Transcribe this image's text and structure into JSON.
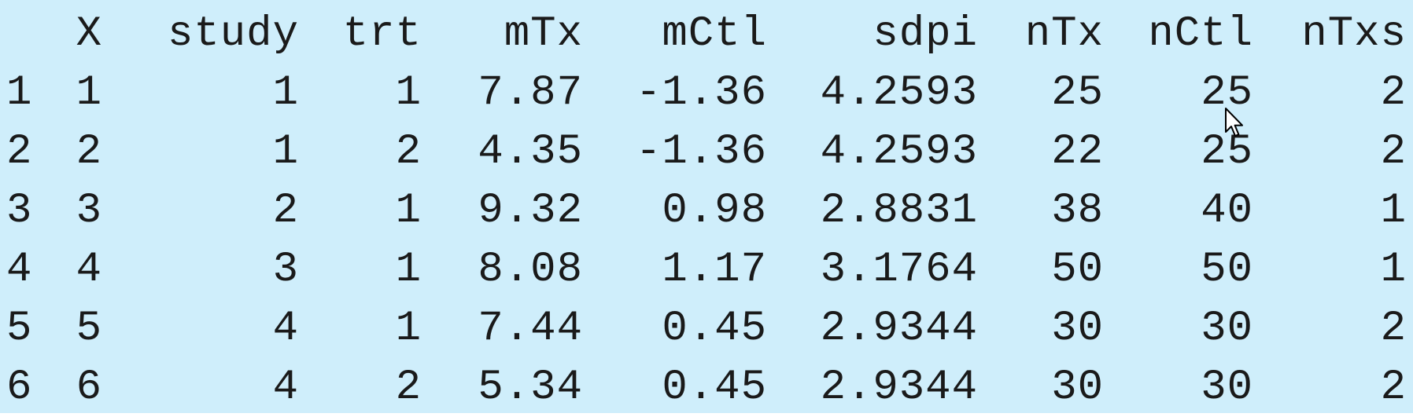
{
  "table": {
    "columns": [
      "",
      "X",
      "study",
      "trt",
      "mTx",
      "mCtl",
      "sdpi",
      "nTx",
      "nCtl",
      "nTxs"
    ],
    "rows": [
      [
        "1",
        "1",
        "1",
        "1",
        "7.87",
        "-1.36",
        "4.2593",
        "25",
        "25",
        "2"
      ],
      [
        "2",
        "2",
        "1",
        "2",
        "4.35",
        "-1.36",
        "4.2593",
        "22",
        "25",
        "2"
      ],
      [
        "3",
        "3",
        "2",
        "1",
        "9.32",
        "0.98",
        "2.8831",
        "38",
        "40",
        "1"
      ],
      [
        "4",
        "4",
        "3",
        "1",
        "8.08",
        "1.17",
        "3.1764",
        "50",
        "50",
        "1"
      ],
      [
        "5",
        "5",
        "4",
        "1",
        "7.44",
        "0.45",
        "2.9344",
        "30",
        "30",
        "2"
      ],
      [
        "6",
        "6",
        "4",
        "2",
        "5.34",
        "0.45",
        "2.9344",
        "30",
        "30",
        "2"
      ]
    ]
  },
  "colors": {
    "background": "#cfeefb",
    "text": "#1a1a1a"
  },
  "icons": {
    "cursor": "mouse-pointer-icon"
  }
}
